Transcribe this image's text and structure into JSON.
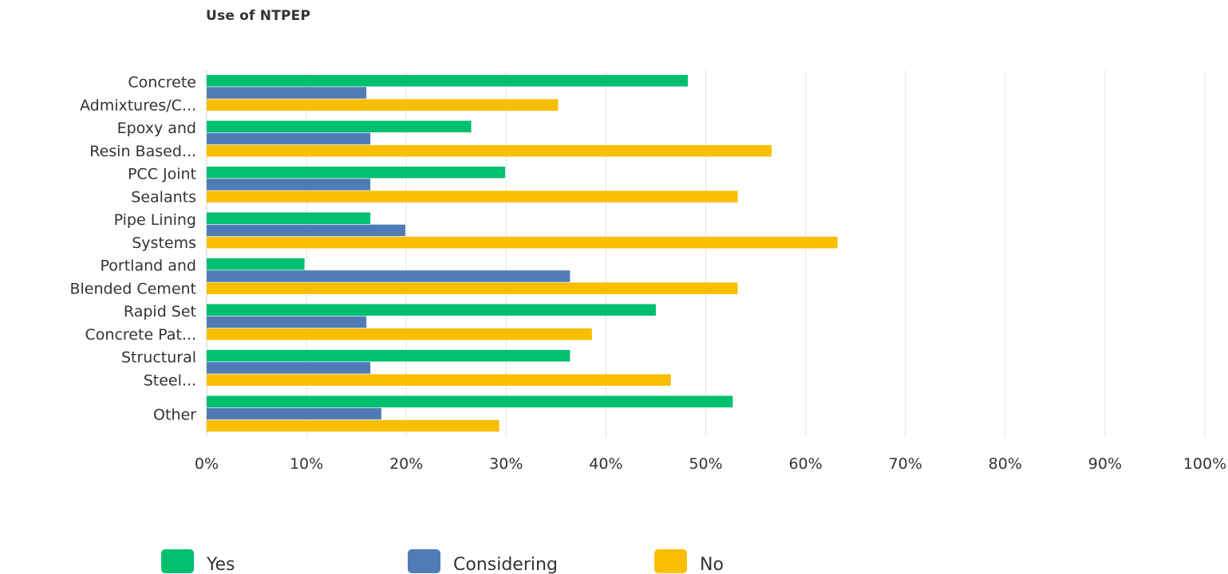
{
  "chart_data": {
    "type": "bar",
    "orientation": "horizontal",
    "title": "Use of NTPEP",
    "xlabel": "",
    "ylabel": "",
    "xlim": [
      0,
      100
    ],
    "grid": true,
    "legend_position": "bottom",
    "categories": [
      [
        "Concrete",
        "Admixtures/C..."
      ],
      [
        "Epoxy and",
        "Resin Based..."
      ],
      [
        "PCC Joint",
        "Sealants"
      ],
      [
        "Pipe Lining",
        "Systems"
      ],
      [
        "Portland and",
        "Blended Cement"
      ],
      [
        "Rapid Set",
        "Concrete Pat..."
      ],
      [
        "Structural",
        "Steel..."
      ],
      [
        "Other"
      ]
    ],
    "x_ticks": [
      "0%",
      "10%",
      "20%",
      "30%",
      "40%",
      "50%",
      "60%",
      "70%",
      "80%",
      "90%",
      "100%"
    ],
    "series": [
      {
        "name": "Yes",
        "color": "#00bf6f",
        "values": [
          48.2,
          26.5,
          29.9,
          16.4,
          9.8,
          45.0,
          36.4,
          52.7
        ]
      },
      {
        "name": "Considering",
        "color": "#507cb6",
        "values": [
          16.0,
          16.4,
          16.4,
          19.9,
          36.4,
          16.0,
          16.4,
          17.5
        ]
      },
      {
        "name": "No",
        "color": "#f9be00",
        "values": [
          35.2,
          56.6,
          53.2,
          63.2,
          53.2,
          38.6,
          46.5,
          29.3
        ]
      }
    ]
  }
}
